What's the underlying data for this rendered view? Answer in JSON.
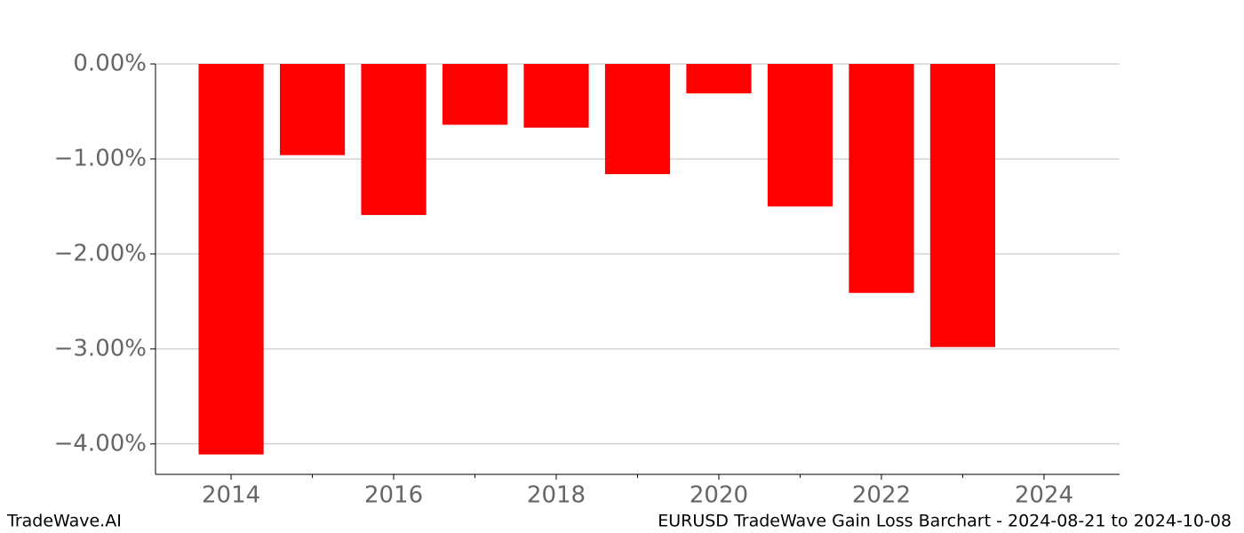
{
  "chart_data": {
    "type": "bar",
    "x": [
      2014,
      2015,
      2016,
      2017,
      2018,
      2019,
      2020,
      2021,
      2022,
      2023
    ],
    "values": [
      -4.11,
      -0.96,
      -1.59,
      -0.64,
      -0.67,
      -1.16,
      -0.31,
      -1.5,
      -2.41,
      -2.98
    ],
    "color": "#ff0000",
    "xlim": [
      2013.07,
      2024.93
    ],
    "xticks": [
      2014,
      2016,
      2018,
      2020,
      2022,
      2024
    ],
    "xminorticks": [
      2015,
      2017,
      2019,
      2021,
      2023
    ],
    "ylim": [
      -4.32,
      0
    ],
    "yticks": [
      {
        "value": 0,
        "label": "0.00%"
      },
      {
        "value": -1,
        "label": "−1.00%"
      },
      {
        "value": -2,
        "label": "−2.00%"
      },
      {
        "value": -3,
        "label": "−3.00%"
      },
      {
        "value": -4,
        "label": "−4.00%"
      }
    ],
    "grid": true,
    "footer_left": "TradeWave.AI",
    "footer_right": "EURUSD TradeWave Gain Loss Barchart - 2024-08-21 to 2024-10-08"
  }
}
